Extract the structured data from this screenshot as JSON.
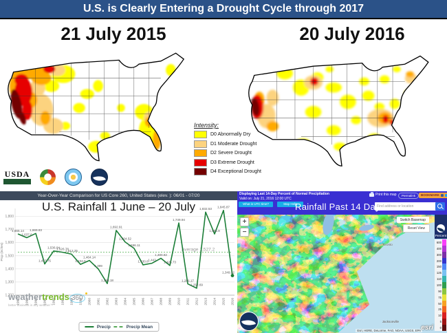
{
  "slide": {
    "title": "U.S. is Clearly Entering a Drought Cycle through 2017"
  },
  "drought": {
    "left_date": "21 July 2015",
    "right_date": "20 July 2016",
    "legend_title": "Intensity:",
    "legend": [
      {
        "label": "D0 Abnormally Dry",
        "color": "#ffff00"
      },
      {
        "label": "D1 Moderate Drought",
        "color": "#fcd37f"
      },
      {
        "label": "D2 Severe Drought",
        "color": "#ffaa00"
      },
      {
        "label": "D3 Extreme Drought",
        "color": "#e60000"
      },
      {
        "label": "D4 Exceptional Drought",
        "color": "#730000"
      }
    ],
    "usda_label": "USDA"
  },
  "chart": {
    "panel_header": "Year-Over-Year Comparison for US Core 260, United States (elev. ): 06/01 - 07/20",
    "title": "U.S. Rainfall 1 June – 20 July"
  },
  "chart_data": {
    "type": "line",
    "title": "U.S. Rainfall 1 June – 20 July",
    "xlabel": "",
    "ylabel": "Prcp (inches)",
    "x": [
      1992,
      1993,
      1994,
      1995,
      1996,
      1997,
      1998,
      1999,
      2000,
      2001,
      2002,
      2003,
      2004,
      2005,
      2006,
      2007,
      2008,
      2009,
      2010,
      2011,
      2012,
      2013,
      2014,
      2015,
      2016
    ],
    "series": [
      {
        "name": "Precip",
        "values": [
          1666.14,
          1637.6,
          1669.83,
          1437.75,
          1536.04,
          1526.78,
          1512.25,
          1434.6,
          1464.14,
          1399,
          1288.18,
          1692.91,
          1604.52,
          1556.11,
          1430.8,
          1443,
          1480.82,
          1425.73,
          1749.94,
          1286.17,
          1252.69,
          1832.53,
          1665.9,
          1845.87,
          1349.22
        ],
        "labels": [
          "1,666.14",
          "1,637.6",
          "1,669.83",
          "1,437.75",
          "1,536.04",
          "1,526.78",
          "1,512.25",
          "1,434.6",
          "1,464.14",
          "1,399",
          "1,288.18",
          "1,692.91",
          "1,604.52",
          "1,556.11",
          "1,430.8",
          "1,443",
          "1,480.82",
          "1,425.73",
          "1,749.94",
          "1,286.17",
          "1,252.69",
          "1,832.53",
          "1,665.9",
          "1,845.87",
          "1,349.22"
        ]
      },
      {
        "name": "Precip Mean",
        "mean": 1527.2,
        "label": "Average 1,527.2"
      }
    ],
    "ylim": [
      1200,
      1860
    ],
    "yticks": [
      1200,
      1300,
      1400,
      1500,
      1600,
      1700,
      1800
    ],
    "grid": true,
    "legend_position": "bottom",
    "line_color": "#1b7e37",
    "mean_color": "#7cc47c"
  },
  "wt_logo": {
    "part1": "weather",
    "part2": "trends",
    "part3": "360",
    "tagline": "better business in any weather™"
  },
  "rainmap": {
    "line1": "Displaying Last 14-Day Percent of Normal Precipitation",
    "line2": "Valid on: July 21, 2016 12:00 UTC",
    "utc_button": "What is UTC time?",
    "help_button": "Map Help",
    "print_label": "Print this map",
    "permalink_label": "Permalink",
    "bookmark_label": "BOOKMARK",
    "title": "Rainfall Past 14 Days",
    "search_placeholder": "Find address or location",
    "switch_basemap": "Switch Basemap",
    "reset_view": "Reset View",
    "zoom_in": "+",
    "zoom_out": "−",
    "scale_title": "Percent",
    "scale": [
      {
        "value": "600",
        "color": "#f93ef9"
      },
      {
        "value": "400",
        "color": "#b435d6"
      },
      {
        "value": "300",
        "color": "#7b2fa8"
      },
      {
        "value": "200",
        "color": "#3333cc"
      },
      {
        "value": "150",
        "color": "#4f86f7"
      },
      {
        "value": "125",
        "color": "#79c1f2"
      },
      {
        "value": "110",
        "color": "#35b6b0"
      },
      {
        "value": "100",
        "color": "#2e9e4f"
      },
      {
        "value": "90",
        "color": "#8cc63f"
      },
      {
        "value": "75",
        "color": "#e8e33c"
      },
      {
        "value": "50",
        "color": "#f7a123"
      },
      {
        "value": "25",
        "color": "#f2641e"
      },
      {
        "value": "10",
        "color": "#d92121"
      },
      {
        "value": "5",
        "color": "#9e1414"
      },
      {
        "value": "0",
        "color": "#5c0f0f"
      }
    ],
    "cities": {
      "toronto": "Toronto",
      "jacksonville": "Jacksonville"
    },
    "attribution": "Esri, HERE, DeLorme, FAO, NOAA, USGS, EPA",
    "esri_label": "esri"
  }
}
